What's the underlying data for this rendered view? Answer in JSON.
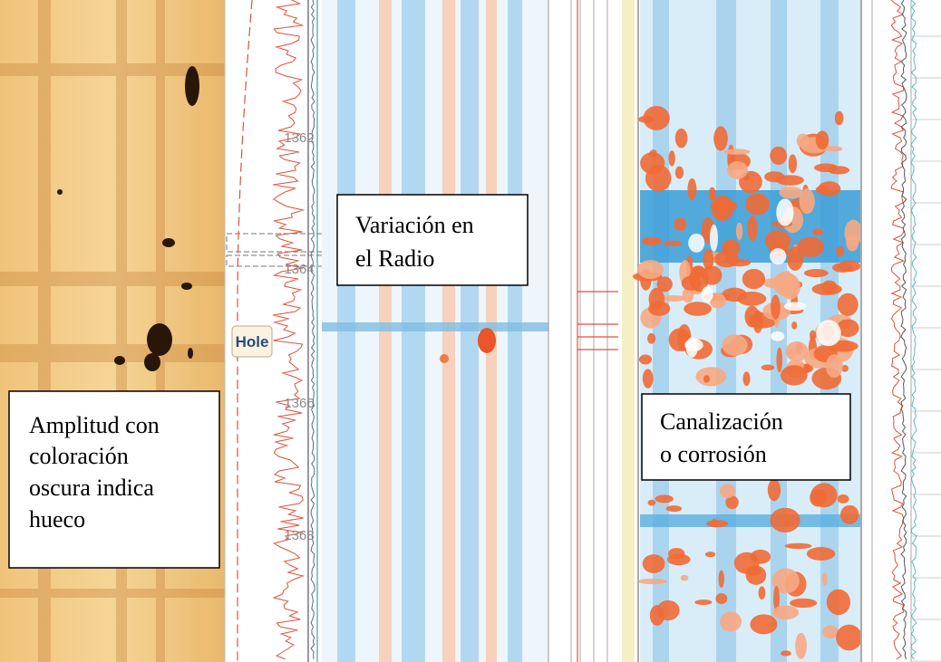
{
  "depth_labels": [
    1362,
    1364,
    1366,
    1368
  ],
  "hole_label": "Hole",
  "annotations": [
    {
      "lines": [
        "Amplitud con",
        "coloración",
        "oscura indica",
        "hueco"
      ]
    },
    {
      "lines": [
        "Variación en",
        "el Radio"
      ]
    },
    {
      "lines": [
        "Canalización",
        "o corrosión"
      ]
    }
  ]
}
